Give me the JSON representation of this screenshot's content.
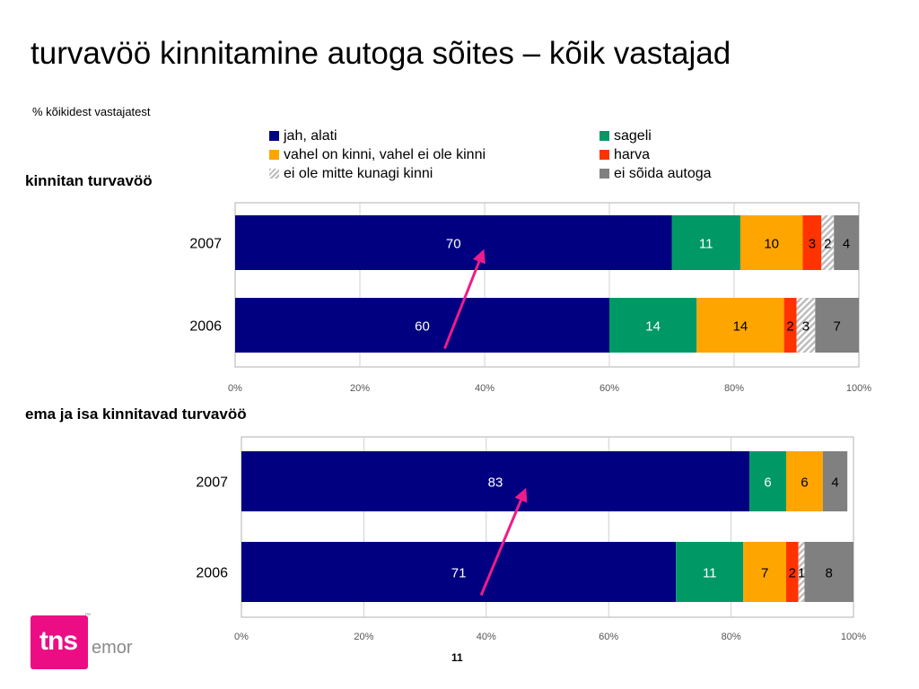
{
  "title": "turvavöö kinnitamine autoga sõites – kõik vastajad",
  "subtitle": "% kõikidest vastajatest",
  "page_number": "11",
  "logo": {
    "mark": "tns",
    "name": "emor"
  },
  "legend": [
    {
      "label": "jah, alati",
      "color": "#000080",
      "pattern": "solid"
    },
    {
      "label": "vahel on kinni, vahel ei ole kinni",
      "color": "#FFA500",
      "pattern": "solid"
    },
    {
      "label": "ei ole mitte kunagi kinni",
      "color": "#c8c8c8",
      "pattern": "hatched"
    },
    {
      "label": "sageli",
      "color": "#009966",
      "pattern": "solid"
    },
    {
      "label": "harva",
      "color": "#FF3300",
      "pattern": "solid"
    },
    {
      "label": "ei sõida autoga",
      "color": "#808080",
      "pattern": "solid"
    }
  ],
  "colors": {
    "jah_alati": "#000080",
    "sageli": "#009966",
    "vahel": "#FFA500",
    "harva": "#FF3300",
    "mitte_kunagi": "#c8c8c8",
    "ei_soida": "#808080",
    "arrow": "#EC1C8C"
  },
  "chart_data": [
    {
      "type": "bar",
      "orientation": "horizontal",
      "stacked": true,
      "title": "kinnitan turvavöö",
      "categories": [
        "2007",
        "2006"
      ],
      "xlim": [
        0,
        100
      ],
      "xticks": [
        "0%",
        "20%",
        "40%",
        "60%",
        "80%",
        "100%"
      ],
      "grid": true,
      "series": [
        {
          "name": "jah, alati",
          "values": [
            70,
            60
          ],
          "labels": [
            "70",
            "60"
          ],
          "color": "#000080"
        },
        {
          "name": "sageli",
          "values": [
            11,
            14
          ],
          "labels": [
            "11",
            "14"
          ],
          "color": "#009966"
        },
        {
          "name": "vahel on kinni, vahel ei ole kinni",
          "values": [
            10,
            14
          ],
          "labels": [
            "10",
            "14"
          ],
          "color": "#FFA500"
        },
        {
          "name": "harva",
          "values": [
            3,
            2
          ],
          "labels": [
            "3",
            "2"
          ],
          "color": "#FF3300"
        },
        {
          "name": "ei ole mitte kunagi kinni",
          "values": [
            2,
            3
          ],
          "labels": [
            "2",
            "3"
          ],
          "color": "#c8c8c8"
        },
        {
          "name": "ei sõida autoga",
          "values": [
            4,
            7
          ],
          "labels": [
            "4",
            "7"
          ],
          "color": "#808080"
        }
      ],
      "annotation": {
        "type": "arrow",
        "from_category": "2006",
        "to_category": "2007",
        "series": "jah, alati",
        "color": "#EC1C8C"
      }
    },
    {
      "type": "bar",
      "orientation": "horizontal",
      "stacked": true,
      "title": "ema ja isa kinnitavad turvavöö",
      "categories": [
        "2007",
        "2006"
      ],
      "xlim": [
        0,
        100
      ],
      "xticks": [
        "0%",
        "20%",
        "40%",
        "60%",
        "80%",
        "100%"
      ],
      "grid": true,
      "series": [
        {
          "name": "jah, alati",
          "values": [
            83,
            71
          ],
          "labels": [
            "83",
            "71"
          ],
          "color": "#000080"
        },
        {
          "name": "sageli",
          "values": [
            6,
            11
          ],
          "labels": [
            "6",
            "11"
          ],
          "color": "#009966"
        },
        {
          "name": "vahel on kinni, vahel ei ole kinni",
          "values": [
            6,
            7
          ],
          "labels": [
            "6",
            "7"
          ],
          "color": "#FFA500"
        },
        {
          "name": "harva",
          "values": [
            0,
            2
          ],
          "labels": [
            "",
            "2"
          ],
          "color": "#FF3300"
        },
        {
          "name": "ei ole mitte kunagi kinni",
          "values": [
            0,
            1
          ],
          "labels": [
            "",
            "1"
          ],
          "color": "#c8c8c8"
        },
        {
          "name": "ei sõida autoga",
          "values": [
            4,
            8
          ],
          "labels": [
            "4",
            "8"
          ],
          "color": "#808080"
        }
      ],
      "annotation": {
        "type": "arrow",
        "from_category": "2006",
        "to_category": "2007",
        "series": "jah, alati",
        "color": "#EC1C8C"
      }
    }
  ]
}
